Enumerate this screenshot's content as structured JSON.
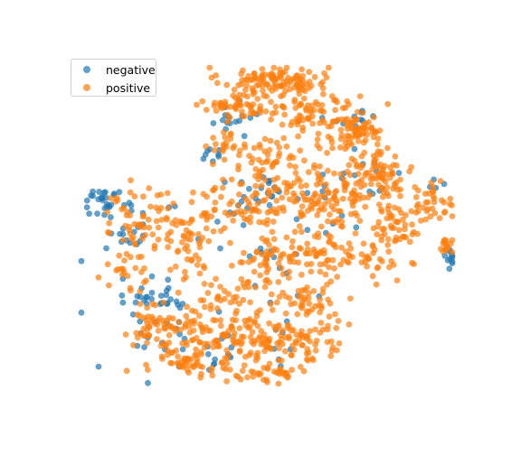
{
  "chart_data": {
    "type": "scatter",
    "title": "",
    "xlabel": "",
    "ylabel": "",
    "axes_visible": false,
    "legend": {
      "placement": "upper-left"
    },
    "xlim": [
      0,
      100
    ],
    "ylim": [
      0,
      100
    ],
    "point_alpha": 0.7,
    "series": [
      {
        "name": "negative",
        "color": "#1f77b4",
        "count_approx": 230,
        "regions": [
          {
            "x": 6,
            "y": 58,
            "sx": 3.5,
            "sy": 2.5,
            "n": 28
          },
          {
            "x": 14,
            "y": 50,
            "sx": 5,
            "sy": 5,
            "n": 20
          },
          {
            "x": 22,
            "y": 26,
            "sx": 7,
            "sy": 5,
            "n": 38
          },
          {
            "x": 20,
            "y": 8,
            "sx": 8,
            "sy": 4,
            "n": 10
          },
          {
            "x": 40,
            "y": 83,
            "sx": 4,
            "sy": 3,
            "n": 16
          },
          {
            "x": 33,
            "y": 72,
            "sx": 3,
            "sy": 2,
            "n": 8
          },
          {
            "x": 50,
            "y": 62,
            "sx": 4,
            "sy": 4,
            "n": 14
          },
          {
            "x": 42,
            "y": 52,
            "sx": 8,
            "sy": 8,
            "n": 14
          },
          {
            "x": 50,
            "y": 40,
            "sx": 4,
            "sy": 3,
            "n": 8
          },
          {
            "x": 55,
            "y": 22,
            "sx": 8,
            "sy": 10,
            "n": 12
          },
          {
            "x": 73,
            "y": 84,
            "sx": 5,
            "sy": 3,
            "n": 10
          },
          {
            "x": 78,
            "y": 68,
            "sx": 6,
            "sy": 5,
            "n": 12
          },
          {
            "x": 66,
            "y": 55,
            "sx": 6,
            "sy": 6,
            "n": 12
          },
          {
            "x": 99,
            "y": 40,
            "sx": 2,
            "sy": 2.5,
            "n": 12
          },
          {
            "x": 96,
            "y": 63,
            "sx": 2,
            "sy": 2,
            "n": 4
          },
          {
            "x": 35,
            "y": 10,
            "sx": 8,
            "sy": 4,
            "n": 12
          }
        ]
      },
      {
        "name": "positive",
        "color": "#ff7f0e",
        "count_approx": 1400,
        "regions": [
          {
            "x": 52,
            "y": 96,
            "sx": 9,
            "sy": 3,
            "n": 110
          },
          {
            "x": 62,
            "y": 86,
            "sx": 8,
            "sy": 4,
            "n": 70
          },
          {
            "x": 43,
            "y": 88,
            "sx": 6,
            "sy": 3,
            "n": 55
          },
          {
            "x": 39,
            "y": 75,
            "sx": 3,
            "sy": 3,
            "n": 20
          },
          {
            "x": 52,
            "y": 72,
            "sx": 7,
            "sy": 4,
            "n": 45
          },
          {
            "x": 74,
            "y": 80,
            "sx": 5,
            "sy": 4,
            "n": 65
          },
          {
            "x": 80,
            "y": 67,
            "sx": 6,
            "sy": 6,
            "n": 85
          },
          {
            "x": 68,
            "y": 60,
            "sx": 7,
            "sy": 6,
            "n": 80
          },
          {
            "x": 84,
            "y": 50,
            "sx": 6,
            "sy": 5,
            "n": 50
          },
          {
            "x": 94,
            "y": 58,
            "sx": 4,
            "sy": 4,
            "n": 35
          },
          {
            "x": 55,
            "y": 57,
            "sx": 7,
            "sy": 6,
            "n": 55
          },
          {
            "x": 43,
            "y": 57,
            "sx": 7,
            "sy": 6,
            "n": 55
          },
          {
            "x": 26,
            "y": 52,
            "sx": 6,
            "sy": 6,
            "n": 45
          },
          {
            "x": 14,
            "y": 52,
            "sx": 6,
            "sy": 6,
            "n": 40
          },
          {
            "x": 12,
            "y": 36,
            "sx": 4,
            "sy": 5,
            "n": 25
          },
          {
            "x": 30,
            "y": 40,
            "sx": 5,
            "sy": 5,
            "n": 25
          },
          {
            "x": 50,
            "y": 40,
            "sx": 6,
            "sy": 5,
            "n": 50
          },
          {
            "x": 65,
            "y": 40,
            "sx": 6,
            "sy": 5,
            "n": 55
          },
          {
            "x": 78,
            "y": 40,
            "sx": 5,
            "sy": 4,
            "n": 30
          },
          {
            "x": 99,
            "y": 44,
            "sx": 2,
            "sy": 2,
            "n": 15
          },
          {
            "x": 28,
            "y": 15,
            "sx": 9,
            "sy": 6,
            "n": 80
          },
          {
            "x": 44,
            "y": 15,
            "sx": 8,
            "sy": 6,
            "n": 85
          },
          {
            "x": 60,
            "y": 15,
            "sx": 8,
            "sy": 6,
            "n": 75
          },
          {
            "x": 60,
            "y": 27,
            "sx": 6,
            "sy": 4,
            "n": 40
          },
          {
            "x": 40,
            "y": 28,
            "sx": 6,
            "sy": 4,
            "n": 35
          },
          {
            "x": 30,
            "y": 6,
            "sx": 6,
            "sy": 2.5,
            "n": 40
          },
          {
            "x": 50,
            "y": 3,
            "sx": 7,
            "sy": 2,
            "n": 35
          },
          {
            "x": 18,
            "y": 20,
            "sx": 4,
            "sy": 4,
            "n": 25
          }
        ]
      }
    ]
  }
}
